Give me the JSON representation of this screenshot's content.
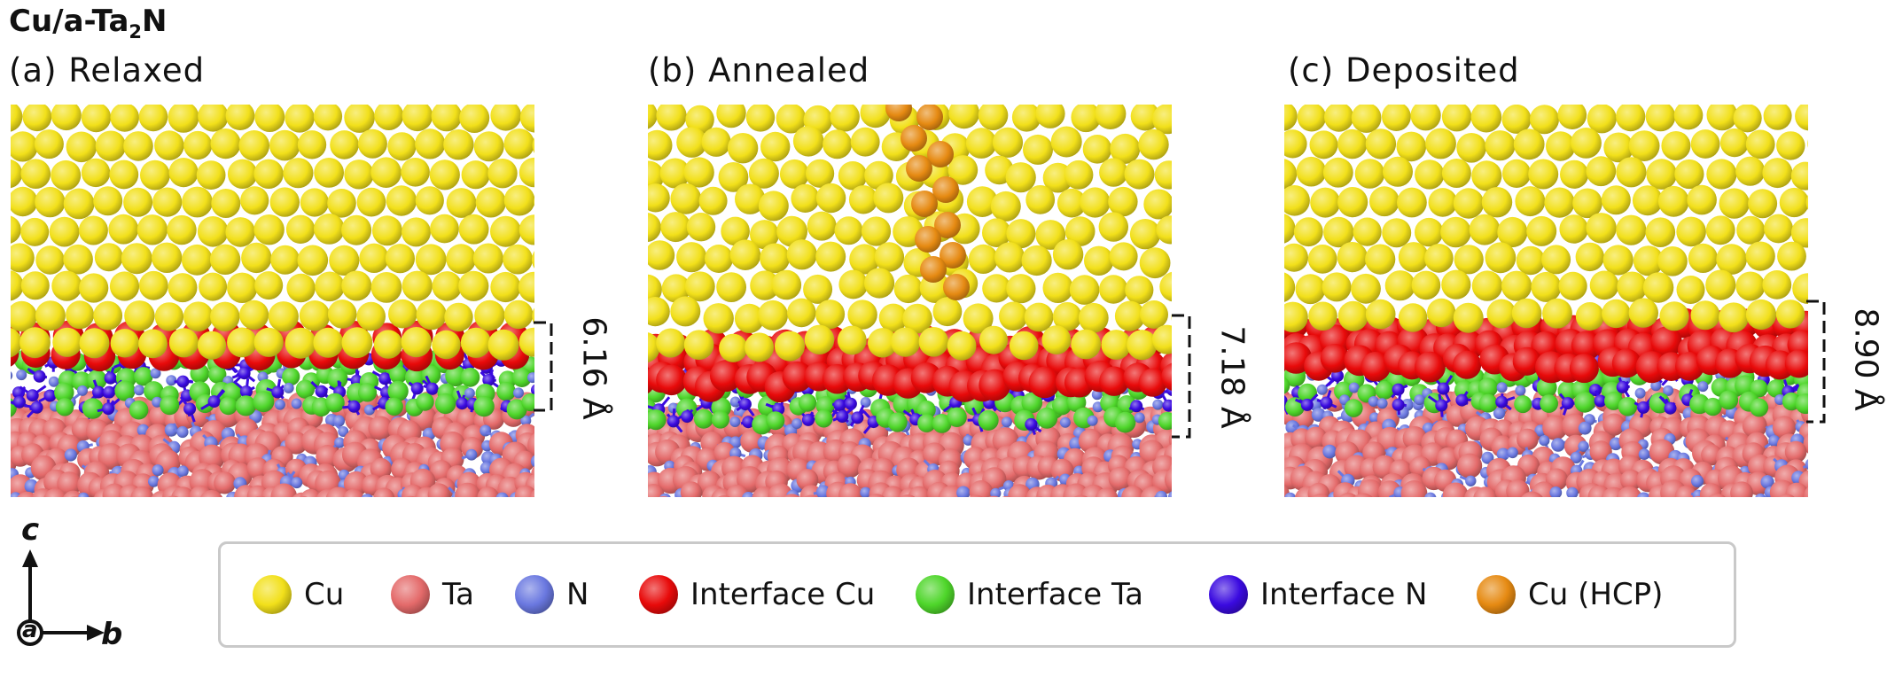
{
  "figure": {
    "title_main": "Cu/a-Ta",
    "title_sub": "2",
    "title_tail": "N"
  },
  "panels": [
    {
      "label": "(a) Relaxed",
      "thickness": "6.16 Å"
    },
    {
      "label": "(b) Annealed",
      "thickness": "7.18 Å"
    },
    {
      "label": "(c) Deposited",
      "thickness": "8.90 Å"
    }
  ],
  "legend": {
    "items": [
      {
        "label": "Cu",
        "color": "#f2e01a"
      },
      {
        "label": "Ta",
        "color": "#e46a6a"
      },
      {
        "label": "N",
        "color": "#6a78e0"
      },
      {
        "label": "Interface Cu",
        "color": "#e80a0a"
      },
      {
        "label": "Interface Ta",
        "color": "#4ed62a"
      },
      {
        "label": "Interface N",
        "color": "#3a0ae0"
      },
      {
        "label": "Cu (HCP)",
        "color": "#e68a12"
      }
    ]
  },
  "axes": {
    "up_label": "c",
    "right_label": "b",
    "origin_label": "a"
  },
  "colors": {
    "cu": "#f2e01a",
    "ta": "#e46a6a",
    "n": "#6a78e0",
    "interface_cu": "#e80a0a",
    "interface_ta": "#4ed62a",
    "interface_n": "#3a0ae0",
    "cu_hcp": "#e68a12"
  }
}
